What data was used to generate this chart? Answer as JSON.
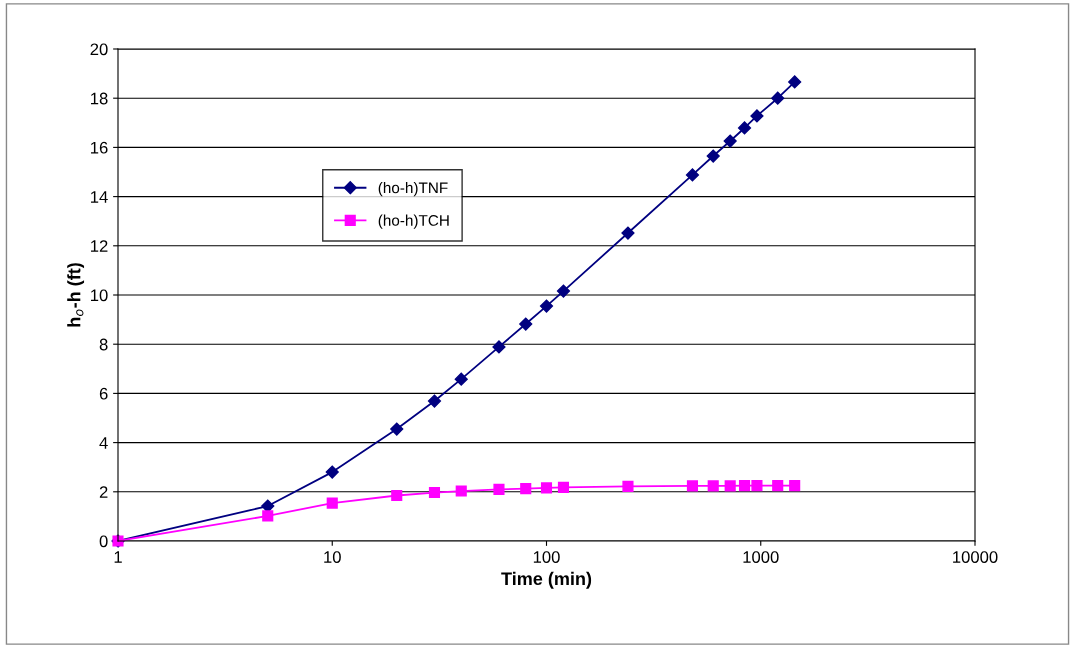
{
  "chart_data": {
    "type": "line",
    "xlabel": "Time (min)",
    "ylabel": "h$_{o}$-h (ft)",
    "x": [
      1,
      5,
      10,
      20,
      30,
      40,
      60,
      80,
      100,
      120,
      240,
      480,
      600,
      720,
      840,
      960,
      1200,
      1440
    ],
    "series": [
      {
        "name": "(ho-h)TNF",
        "color": "#000080",
        "marker": "diamond",
        "values": [
          0,
          1.42,
          2.8,
          4.55,
          5.69,
          6.58,
          7.89,
          8.82,
          9.55,
          10.16,
          12.52,
          14.88,
          15.65,
          16.26,
          16.79,
          17.28,
          18.0,
          18.66
        ]
      },
      {
        "name": "(ho-h)TCH",
        "color": "#ff00ff",
        "marker": "square",
        "values": [
          0,
          1.02,
          1.54,
          1.85,
          1.97,
          2.03,
          2.1,
          2.13,
          2.16,
          2.18,
          2.22,
          2.24,
          2.24,
          2.24,
          2.25,
          2.25,
          2.25,
          2.25
        ]
      }
    ],
    "log": "x",
    "xlim": [
      1,
      10000
    ],
    "xticks": [
      1,
      10,
      100,
      1000,
      10000
    ],
    "ylim": [
      0,
      20
    ],
    "yticks": [
      0,
      2,
      4,
      6,
      8,
      10,
      12,
      14,
      16,
      18,
      20
    ],
    "grid": "y",
    "legend": "top left",
    "line_style": "solid"
  }
}
